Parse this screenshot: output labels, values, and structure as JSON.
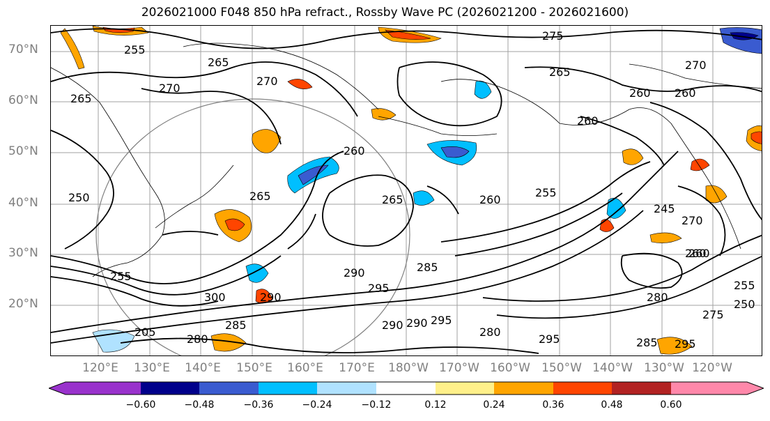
{
  "title": "2026021000 F048 850 hPa refract., Rossby Wave PC (2026021200 - 2026021600)",
  "lat_labels": [
    "70°N",
    "60°N",
    "50°N",
    "40°N",
    "30°N",
    "20°N"
  ],
  "lon_labels": [
    "120°E",
    "130°E",
    "140°E",
    "150°E",
    "160°E",
    "170°E",
    "180°W",
    "170°W",
    "160°W",
    "150°W",
    "140°W",
    "130°W",
    "120°W"
  ],
  "contour_labels": [
    "275",
    "265",
    "270",
    "255",
    "270",
    "265",
    "260",
    "260",
    "270",
    "260",
    "265",
    "250",
    "260",
    "265",
    "255",
    "260",
    "270",
    "245",
    "265",
    "260",
    "255",
    "285",
    "290",
    "295",
    "300",
    "295",
    "290",
    "290",
    "295",
    "280",
    "275",
    "280",
    "285",
    "290",
    "295",
    "285",
    "205",
    "280",
    "260",
    "255",
    "250"
  ],
  "colorbar": {
    "ticks": [
      "−0.60",
      "−0.48",
      "−0.36",
      "−0.24",
      "−0.12",
      "0.12",
      "0.24",
      "0.36",
      "0.48",
      "0.60"
    ],
    "colors": [
      "#9932cc",
      "#00008b",
      "#3a5bd0",
      "#00bfff",
      "#b0e2ff",
      "#ffffff",
      "#fff08a",
      "#ffa500",
      "#ff4500",
      "#b22222",
      "#ff88aa"
    ]
  }
}
